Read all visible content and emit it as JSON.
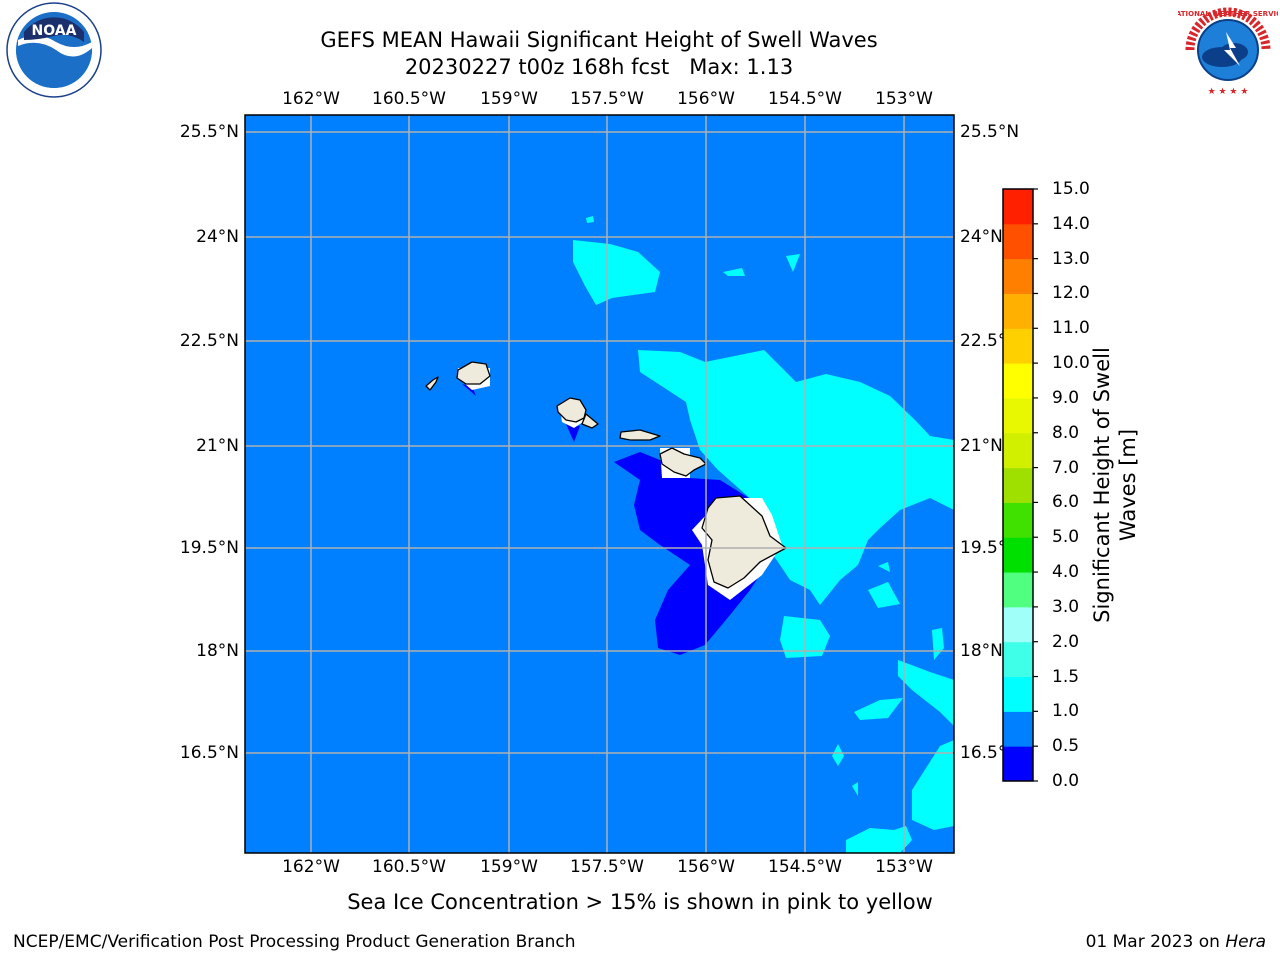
{
  "title": {
    "line1": "GEFS MEAN Hawaii Significant Height of Swell Waves",
    "line2_run": "20230227 t00z 168h fcst",
    "line2_max": "Max: 1.13"
  },
  "map": {
    "lon_labels": [
      "162°W",
      "160.5°W",
      "159°W",
      "157.5°W",
      "156°W",
      "154.5°W",
      "153°W"
    ],
    "lat_labels": [
      "25.5°N",
      "24°N",
      "22.5°N",
      "21°N",
      "19.5°N",
      "18°N",
      "16.5°N"
    ],
    "ocean_color": "#0080ff",
    "land_color": "#eeebdc"
  },
  "colorbar": {
    "label_line1": "Significant Height of Swell",
    "label_line2": "Waves [m]",
    "ticks": [
      "0.0",
      "0.5",
      "1.0",
      "1.5",
      "2.0",
      "3.0",
      "4.0",
      "5.0",
      "6.0",
      "7.0",
      "8.0",
      "9.0",
      "10.0",
      "11.0",
      "12.0",
      "13.0",
      "14.0",
      "15.0"
    ],
    "colors": [
      "#0000ff",
      "#0080ff",
      "#00ffff",
      "#40ffe8",
      "#a0fff8",
      "#50ff80",
      "#00e000",
      "#40e000",
      "#a0e000",
      "#d0f000",
      "#e8f800",
      "#ffff00",
      "#ffd000",
      "#ffb000",
      "#ff8000",
      "#ff5000",
      "#ff2000"
    ]
  },
  "footer": {
    "note": "Sea Ice Concentration > 15% is shown in pink to yellow",
    "credit": "NCEP/EMC/Verification Post Processing Product Generation Branch",
    "date": "01 Mar 2023 on",
    "machine": "Hera"
  },
  "logos": {
    "left_logo_text": "NOAA",
    "right_logo_text": "NATIONAL WEATHER SERVICE"
  }
}
